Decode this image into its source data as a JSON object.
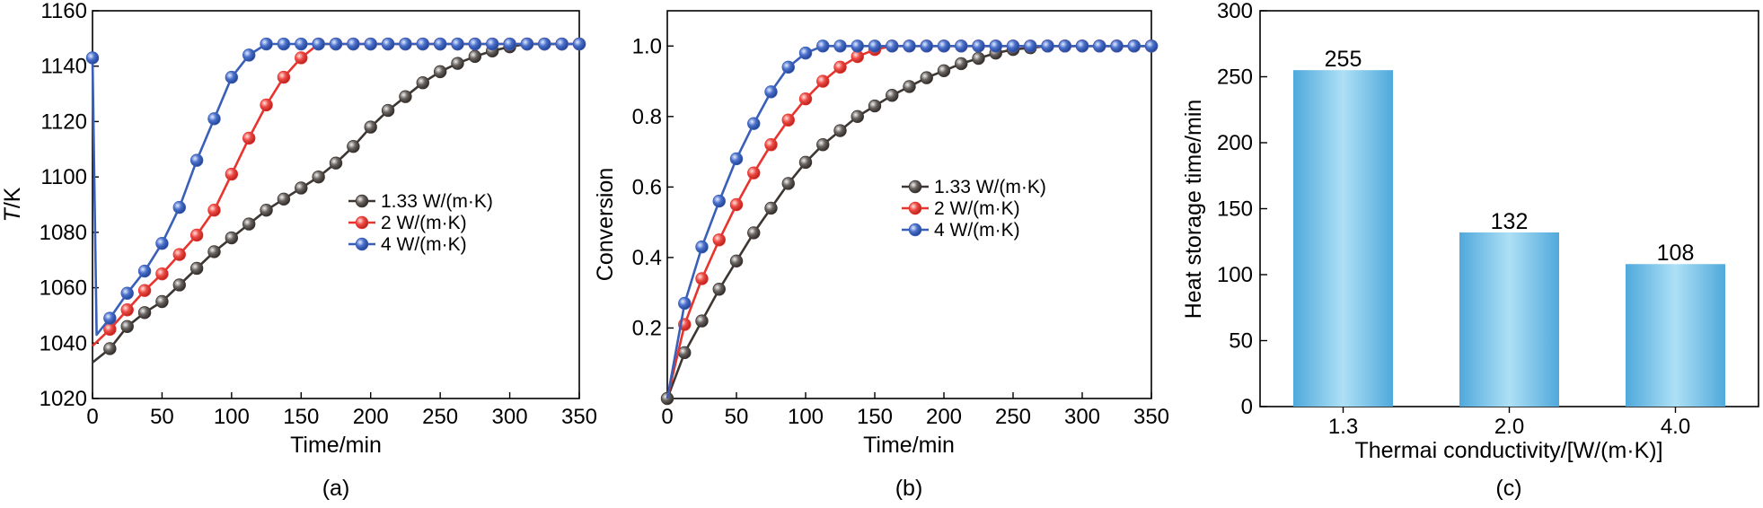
{
  "chart_data": [
    {
      "panel": "(a)",
      "type": "line",
      "xlabel": "Time/min",
      "ylabel_italic": "T",
      "ylabel_rest": "/K",
      "xlim": [
        0,
        350
      ],
      "ylim": [
        1020,
        1160
      ],
      "xticks": [
        "0",
        "50",
        "100",
        "150",
        "200",
        "250",
        "300",
        "350"
      ],
      "yticks": [
        "1020",
        "1040",
        "1060",
        "1080",
        "1100",
        "1120",
        "1140",
        "1160"
      ],
      "legend": "center-right",
      "series": [
        {
          "name": "1.33 W/(m·K)",
          "color": "#3d3734",
          "x": [
            0,
            12.5,
            25,
            37.5,
            50,
            62.5,
            75,
            87.5,
            100,
            112.5,
            125,
            137.5,
            150,
            162.5,
            175,
            187.5,
            200,
            212.5,
            225,
            237.5,
            250,
            262.5,
            275,
            287.5,
            300,
            312.5,
            325,
            337.5,
            350
          ],
          "y": [
            1033,
            1038,
            1046,
            1051,
            1055,
            1061,
            1067,
            1073,
            1078,
            1083,
            1088,
            1092,
            1096,
            1100,
            1105,
            1111,
            1118,
            1124,
            1129,
            1134,
            1138,
            1141,
            1143.5,
            1145.5,
            1147,
            1148,
            1148,
            1148,
            1148
          ],
          "markers_x": [
            12.5,
            25,
            37.5,
            50,
            62.5,
            75,
            87.5,
            100,
            112.5,
            125,
            137.5,
            150,
            162.5,
            175,
            187.5,
            200,
            212.5,
            225,
            237.5,
            250,
            262.5,
            275,
            287.5,
            300,
            312.5,
            325,
            337.5,
            350
          ]
        },
        {
          "name": "2 W/(m·K)",
          "color": "#e8342f",
          "x": [
            0,
            12.5,
            25,
            37.5,
            50,
            62.5,
            75,
            87.5,
            100,
            112.5,
            125,
            137.5,
            150,
            162.5,
            175,
            187.5,
            200,
            212.5,
            225,
            237.5,
            250,
            262.5,
            275,
            287.5,
            300,
            312.5,
            325,
            337.5,
            350
          ],
          "y": [
            1039,
            1045,
            1052,
            1059,
            1065,
            1072,
            1079,
            1088,
            1101,
            1114,
            1126,
            1136,
            1143,
            1148,
            1148,
            1148,
            1148,
            1148,
            1148,
            1148,
            1148,
            1148,
            1148,
            1148,
            1148,
            1148,
            1148,
            1148,
            1148
          ],
          "markers_x": [
            12.5,
            25,
            37.5,
            50,
            62.5,
            75,
            87.5,
            100,
            112.5,
            125,
            137.5,
            150,
            162.5,
            175,
            187.5,
            200,
            212.5,
            225,
            237.5,
            250,
            262.5,
            275,
            287.5,
            300,
            312.5,
            325,
            337.5,
            350
          ]
        },
        {
          "name": "4 W/(m·K)",
          "color": "#3a5fb8",
          "x": [
            0,
            3,
            12.5,
            25,
            37.5,
            50,
            62.5,
            75,
            87.5,
            100,
            112.5,
            125,
            137.5,
            150,
            162.5,
            175,
            187.5,
            200,
            212.5,
            225,
            237.5,
            250,
            262.5,
            275,
            287.5,
            300,
            312.5,
            325,
            337.5,
            350
          ],
          "y": [
            1143,
            1043,
            1049,
            1058,
            1066,
            1076,
            1089,
            1106,
            1121,
            1136,
            1144,
            1148,
            1148,
            1148,
            1148,
            1148,
            1148,
            1148,
            1148,
            1148,
            1148,
            1148,
            1148,
            1148,
            1148,
            1148,
            1148,
            1148,
            1148,
            1148
          ],
          "markers_x": [
            0,
            12.5,
            25,
            37.5,
            50,
            62.5,
            75,
            87.5,
            100,
            112.5,
            125,
            137.5,
            150,
            162.5,
            175,
            187.5,
            200,
            212.5,
            225,
            237.5,
            250,
            262.5,
            275,
            287.5,
            300,
            312.5,
            325,
            337.5,
            350
          ]
        }
      ]
    },
    {
      "panel": "(b)",
      "type": "line",
      "xlabel": "Time/min",
      "ylabel": "Conversion",
      "xlim": [
        0,
        350
      ],
      "ylim": [
        0,
        1.1
      ],
      "xticks": [
        "0",
        "50",
        "100",
        "150",
        "200",
        "250",
        "300",
        "350"
      ],
      "yticks": [
        "0.2",
        "0.4",
        "0.6",
        "0.8",
        "1.0"
      ],
      "legend": "center-right",
      "series": [
        {
          "name": "1.33 W/(m·K)",
          "color": "#3d3734",
          "x": [
            0,
            12.5,
            25,
            37.5,
            50,
            62.5,
            75,
            87.5,
            100,
            112.5,
            125,
            137.5,
            150,
            162.5,
            175,
            187.5,
            200,
            212.5,
            225,
            237.5,
            250,
            262.5,
            275,
            287.5,
            300,
            312.5,
            325,
            337.5,
            350
          ],
          "y": [
            0,
            0.13,
            0.22,
            0.31,
            0.39,
            0.47,
            0.54,
            0.61,
            0.67,
            0.72,
            0.76,
            0.8,
            0.83,
            0.86,
            0.885,
            0.91,
            0.93,
            0.95,
            0.965,
            0.98,
            0.99,
            0.995,
            1.0,
            1.0,
            1.0,
            1.0,
            1.0,
            1.0,
            1.0
          ],
          "markers_x": [
            0,
            12.5,
            25,
            37.5,
            50,
            62.5,
            75,
            87.5,
            100,
            112.5,
            125,
            137.5,
            150,
            162.5,
            175,
            187.5,
            200,
            212.5,
            225,
            237.5,
            250,
            262.5,
            275,
            287.5,
            300,
            312.5,
            325,
            337.5,
            350
          ]
        },
        {
          "name": "2 W/(m·K)",
          "color": "#e8342f",
          "x": [
            0,
            12.5,
            25,
            37.5,
            50,
            62.5,
            75,
            87.5,
            100,
            112.5,
            125,
            137.5,
            150,
            162.5,
            175,
            187.5,
            200,
            212.5,
            225,
            237.5,
            250,
            262.5,
            275,
            287.5,
            300,
            312.5,
            325,
            337.5,
            350
          ],
          "y": [
            0,
            0.21,
            0.34,
            0.45,
            0.55,
            0.64,
            0.72,
            0.79,
            0.85,
            0.9,
            0.94,
            0.97,
            0.99,
            1.0,
            1.0,
            1.0,
            1.0,
            1.0,
            1.0,
            1.0,
            1.0,
            1.0,
            1.0,
            1.0,
            1.0,
            1.0,
            1.0,
            1.0,
            1.0
          ],
          "markers_x": [
            12.5,
            25,
            37.5,
            50,
            62.5,
            75,
            87.5,
            100,
            112.5,
            125,
            137.5,
            150,
            162.5,
            175,
            187.5,
            200,
            212.5,
            225,
            237.5,
            250,
            262.5,
            275,
            287.5,
            300,
            312.5,
            325,
            337.5,
            350
          ]
        },
        {
          "name": "4 W/(m·K)",
          "color": "#3a5fb8",
          "x": [
            0,
            12.5,
            25,
            37.5,
            50,
            62.5,
            75,
            87.5,
            100,
            112.5,
            125,
            137.5,
            150,
            162.5,
            175,
            187.5,
            200,
            212.5,
            225,
            237.5,
            250,
            262.5,
            275,
            287.5,
            300,
            312.5,
            325,
            337.5,
            350
          ],
          "y": [
            0,
            0.27,
            0.43,
            0.56,
            0.68,
            0.78,
            0.87,
            0.94,
            0.98,
            1.0,
            1.0,
            1.0,
            1.0,
            1.0,
            1.0,
            1.0,
            1.0,
            1.0,
            1.0,
            1.0,
            1.0,
            1.0,
            1.0,
            1.0,
            1.0,
            1.0,
            1.0,
            1.0,
            1.0
          ],
          "markers_x": [
            12.5,
            25,
            37.5,
            50,
            62.5,
            75,
            87.5,
            100,
            112.5,
            125,
            137.5,
            150,
            162.5,
            175,
            187.5,
            200,
            212.5,
            225,
            237.5,
            250,
            262.5,
            275,
            287.5,
            300,
            312.5,
            325,
            337.5,
            350
          ]
        }
      ]
    },
    {
      "panel": "(c)",
      "type": "bar",
      "xlabel": "Thermai conductivity/[W/(m·K)]",
      "ylabel": "Heat storage time/min",
      "categories": [
        "1.3",
        "2.0",
        "4.0"
      ],
      "values": [
        255,
        132,
        108
      ],
      "value_labels": [
        "255",
        "132",
        "108"
      ],
      "ylim": [
        0,
        300
      ],
      "yticks": [
        "0",
        "50",
        "100",
        "150",
        "200",
        "250",
        "300"
      ],
      "bar_color": "#5fb4e2"
    }
  ]
}
